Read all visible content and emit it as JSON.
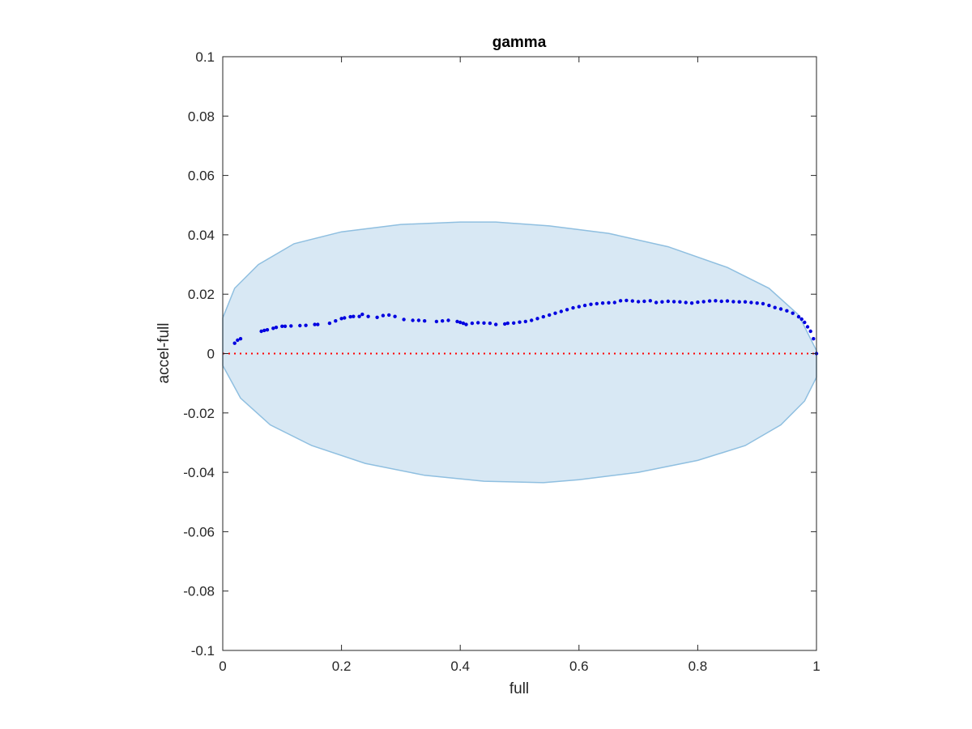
{
  "chart_data": {
    "type": "scatter",
    "title": "gamma",
    "xlabel": "full",
    "ylabel": "accel-full",
    "xlim": [
      0,
      1
    ],
    "ylim": [
      -0.1,
      0.1
    ],
    "x_ticks": [
      0,
      0.2,
      0.4,
      0.6,
      0.8,
      1
    ],
    "x_tick_labels": [
      "0",
      "0.2",
      "0.4",
      "0.6",
      "0.8",
      "1"
    ],
    "y_ticks": [
      -0.1,
      -0.08,
      -0.06,
      -0.04,
      -0.02,
      0,
      0.02,
      0.04,
      0.06,
      0.08,
      0.1
    ],
    "y_tick_labels": [
      "-0.1",
      "-0.08",
      "-0.06",
      "-0.04",
      "-0.02",
      "0",
      "0.02",
      "0.04",
      "0.06",
      "0.08",
      "0.1"
    ],
    "grid": false,
    "reference_line": {
      "y": 0,
      "style": "dotted",
      "color": "#ff0000"
    },
    "shaded_region": {
      "shape": "ellipse",
      "fill_color": "#d8e8f4",
      "edge_color": "#8fbfe0",
      "points": [
        [
          0.0,
          0.012
        ],
        [
          0.02,
          0.022
        ],
        [
          0.06,
          0.03
        ],
        [
          0.12,
          0.037
        ],
        [
          0.2,
          0.041
        ],
        [
          0.3,
          0.0435
        ],
        [
          0.4,
          0.0443
        ],
        [
          0.46,
          0.0443
        ],
        [
          0.55,
          0.043
        ],
        [
          0.65,
          0.0405
        ],
        [
          0.75,
          0.036
        ],
        [
          0.85,
          0.029
        ],
        [
          0.92,
          0.022
        ],
        [
          0.97,
          0.013
        ],
        [
          1.0,
          0.001
        ],
        [
          1.0,
          -0.008
        ],
        [
          0.98,
          -0.016
        ],
        [
          0.94,
          -0.024
        ],
        [
          0.88,
          -0.031
        ],
        [
          0.8,
          -0.036
        ],
        [
          0.7,
          -0.04
        ],
        [
          0.6,
          -0.0425
        ],
        [
          0.54,
          -0.0435
        ],
        [
          0.44,
          -0.043
        ],
        [
          0.34,
          -0.041
        ],
        [
          0.24,
          -0.037
        ],
        [
          0.15,
          -0.031
        ],
        [
          0.08,
          -0.024
        ],
        [
          0.03,
          -0.015
        ],
        [
          0.0,
          -0.004
        ]
      ]
    },
    "series": [
      {
        "color": "#0000e0",
        "x": [
          0.02,
          0.025,
          0.03,
          0.065,
          0.07,
          0.075,
          0.085,
          0.09,
          0.1,
          0.105,
          0.115,
          0.13,
          0.14,
          0.155,
          0.16,
          0.18,
          0.19,
          0.2,
          0.205,
          0.215,
          0.22,
          0.23,
          0.235,
          0.245,
          0.26,
          0.27,
          0.28,
          0.29,
          0.305,
          0.32,
          0.33,
          0.34,
          0.36,
          0.37,
          0.38,
          0.395,
          0.4,
          0.405,
          0.41,
          0.42,
          0.43,
          0.44,
          0.45,
          0.46,
          0.475,
          0.48,
          0.49,
          0.5,
          0.51,
          0.52,
          0.53,
          0.54,
          0.55,
          0.56,
          0.57,
          0.58,
          0.59,
          0.6,
          0.61,
          0.62,
          0.63,
          0.64,
          0.65,
          0.66,
          0.67,
          0.68,
          0.69,
          0.7,
          0.71,
          0.72,
          0.73,
          0.74,
          0.75,
          0.76,
          0.77,
          0.78,
          0.79,
          0.8,
          0.81,
          0.82,
          0.83,
          0.84,
          0.85,
          0.86,
          0.87,
          0.88,
          0.89,
          0.9,
          0.91,
          0.92,
          0.93,
          0.94,
          0.95,
          0.96,
          0.97,
          0.975,
          0.98,
          0.985,
          0.99,
          0.995,
          1.0
        ],
        "y": [
          0.0035,
          0.0045,
          0.005,
          0.0075,
          0.0078,
          0.008,
          0.0085,
          0.0088,
          0.0092,
          0.0092,
          0.0093,
          0.0094,
          0.0095,
          0.0098,
          0.0098,
          0.0102,
          0.011,
          0.0118,
          0.012,
          0.0124,
          0.0125,
          0.0125,
          0.0132,
          0.0125,
          0.0122,
          0.0128,
          0.013,
          0.0125,
          0.0115,
          0.0112,
          0.0112,
          0.011,
          0.0108,
          0.011,
          0.0112,
          0.0108,
          0.0105,
          0.0102,
          0.0098,
          0.0102,
          0.0104,
          0.0103,
          0.0102,
          0.0098,
          0.01,
          0.0102,
          0.0103,
          0.0106,
          0.0108,
          0.0112,
          0.0118,
          0.0124,
          0.013,
          0.0136,
          0.0142,
          0.0148,
          0.0154,
          0.0158,
          0.0162,
          0.0166,
          0.0168,
          0.017,
          0.0171,
          0.0172,
          0.0178,
          0.0179,
          0.0177,
          0.0175,
          0.0176,
          0.0178,
          0.0172,
          0.0174,
          0.0176,
          0.0175,
          0.0174,
          0.0172,
          0.017,
          0.0173,
          0.0175,
          0.0177,
          0.0178,
          0.0176,
          0.0177,
          0.0175,
          0.0174,
          0.0174,
          0.0172,
          0.017,
          0.0168,
          0.0162,
          0.0155,
          0.015,
          0.0144,
          0.0136,
          0.0124,
          0.0116,
          0.0105,
          0.009,
          0.0075,
          0.005,
          0.0
        ]
      }
    ]
  }
}
